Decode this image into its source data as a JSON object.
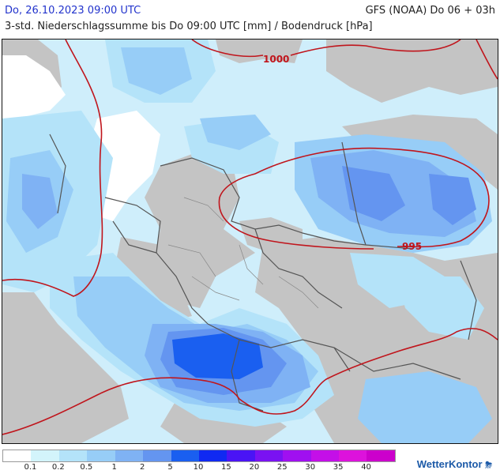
{
  "header": {
    "date_label": "Do, 26.10.2023 09:00 UTC",
    "model_label": "GFS (NOAA) Do 06 + 03h",
    "subtitle": "3-std. Niederschlagssumme bis Do 09:00 UTC [mm] / Bodendruck [hPa]"
  },
  "isobars": [
    {
      "label": "1000"
    },
    {
      "label": "995"
    }
  ],
  "legend": {
    "unit": "mm",
    "colors": [
      "#ffffff",
      "#d3f4fb",
      "#b4e3f9",
      "#97cdf7",
      "#7fb2f4",
      "#6495f0",
      "#1a5ff0",
      "#1029f2",
      "#4a14f5",
      "#7a12f2",
      "#a010f0",
      "#c40fe8",
      "#dd12dc",
      "#cc00cc"
    ],
    "labels": [
      "0.1",
      "0.2",
      "0.5",
      "1",
      "2",
      "5",
      "10",
      "15",
      "20",
      "25",
      "30",
      "35",
      "40"
    ]
  },
  "brand": {
    "name": "WetterKontor",
    "mark": "⛈"
  },
  "colors": {
    "land_dry": "#c4c4c4",
    "isobar": "#c0151c",
    "border": "#555555"
  }
}
